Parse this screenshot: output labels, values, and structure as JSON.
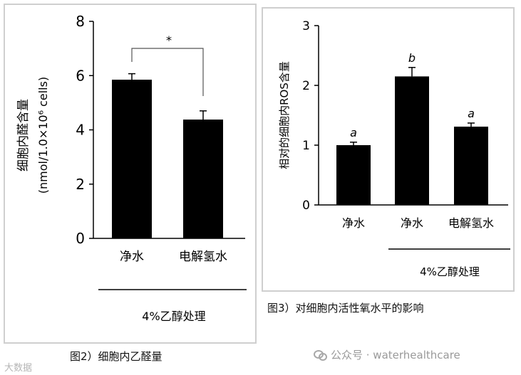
{
  "chart_data": [
    {
      "type": "bar",
      "categories": [
        "净水",
        "电解氢水"
      ],
      "values": [
        5.85,
        4.38
      ],
      "errors": [
        0.22,
        0.32
      ],
      "ylabel": "细胞内醛含量\n(nmol/1.0×10⁶ cells)",
      "ylim": [
        0,
        8
      ],
      "yticks": [
        0,
        2,
        4,
        6,
        8
      ],
      "significance": "*",
      "group_label": "4%乙醇处理",
      "caption": "图2）细胞内乙醛量"
    },
    {
      "type": "bar",
      "categories": [
        "净水",
        "净水",
        "电解氢水"
      ],
      "values": [
        1.0,
        2.15,
        1.31
      ],
      "errors": [
        0.05,
        0.15,
        0.06
      ],
      "letters": [
        "a",
        "b",
        "a"
      ],
      "ylabel": "相对的细胞内ROS含量",
      "ylim": [
        0,
        3
      ],
      "yticks": [
        0,
        1,
        2,
        3
      ],
      "group_label": "4%乙醇处理",
      "caption": "图3）对细胞内活性氧水平的影响"
    }
  ],
  "watermark_left": "大数据",
  "watermark_right": "公众号 · waterhealthcare",
  "colors": {
    "bar": "#000000",
    "frame": "#cfcfcf",
    "caption": "#111111"
  },
  "icons": {
    "wechat": "wechat-icon"
  }
}
